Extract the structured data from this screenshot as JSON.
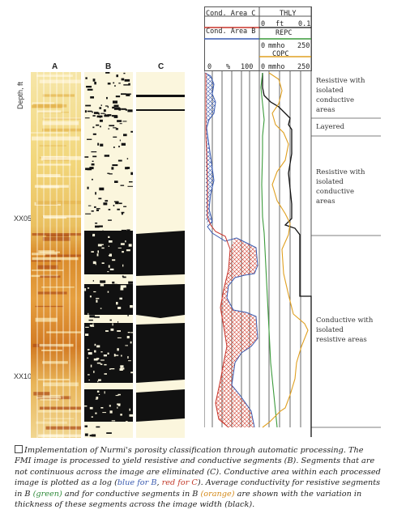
{
  "strips": {
    "label_a": "A",
    "label_b": "B",
    "label_c": "C",
    "depth_axis_label": "Depth, ft",
    "depth_marks": [
      "XX05",
      "XX10"
    ]
  },
  "log_header": {
    "row1_left": "Cond. Area C",
    "row1_right": "THLY",
    "row2_left": "Cond. Area B",
    "row2_min": "0",
    "row2_unit": "ft",
    "row2_max": "0.1",
    "row2_curve": "REPC",
    "row3_min": "0",
    "row3_unit": "mmho",
    "row3_max": "250",
    "row3_curve": "COPC",
    "row4_track1_min": "0",
    "row4_track1_unit": "%",
    "row4_track1_max": "100",
    "row4_min": "0",
    "row4_unit": "mmho",
    "row4_max": "250"
  },
  "zones": [
    {
      "label": "Resistive with isolated conductive areas"
    },
    {
      "label": "Layered"
    },
    {
      "label": "Resistive with isolated conductive areas"
    },
    {
      "label": "Conductive with isolated resistive areas"
    }
  ],
  "caption": {
    "p1": "Implementation of Nurmi's porosity classification through automatic processing. The FMI image is processed to yield resistive and conductive segments (B). Segments that are not continuous across the image are eliminated (C). Conductive area within each processed image is plotted as a log ",
    "p1_paren_open": "(",
    "blue_text": "blue for B",
    "p1_comma": ", ",
    "red_text": "red for C",
    "p1_paren_close": "). Average conductivity for resistive segments in B ",
    "green_text": "(green)",
    "p2": " and for conductive segments in B ",
    "orange_text": "(orange)",
    "p3": " are shown with the variation in thickness of these segments across the image width ",
    "black_text": "(black)",
    "p4": "."
  },
  "colors": {
    "blue_curve": "#3a5bb0",
    "red_curve": "#c8342a",
    "green_curve": "#3a9a3a",
    "orange_curve": "#e0a020",
    "black_curve": "#111111",
    "core_light": "#f3d98a",
    "core_dark": "#c8661a"
  }
}
